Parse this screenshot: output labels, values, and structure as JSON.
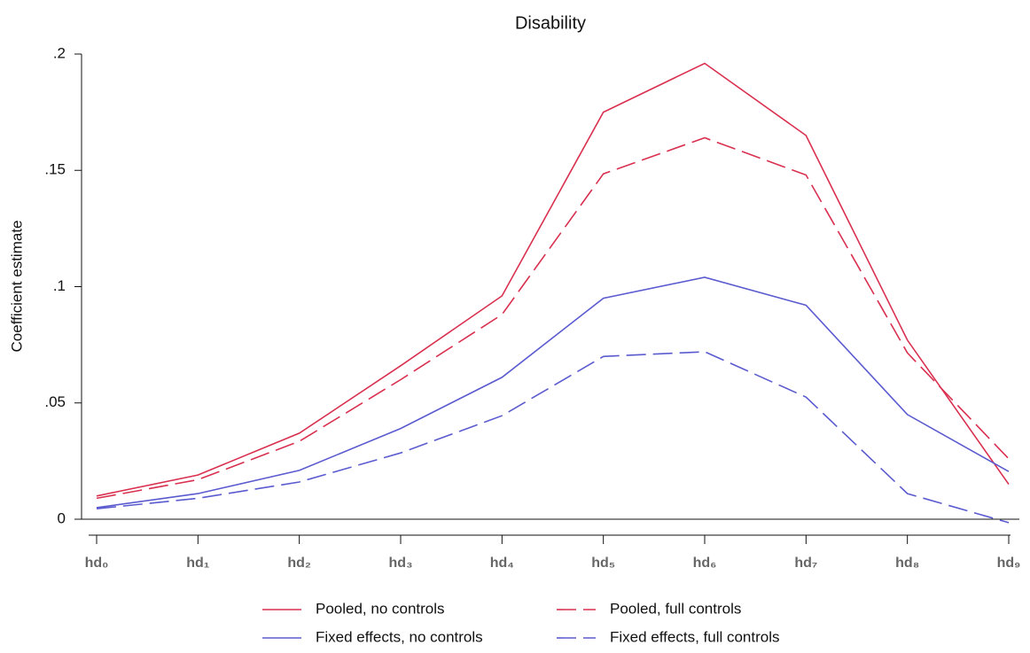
{
  "chart_data": {
    "type": "line",
    "title": "Disability",
    "y_label": "Coefficient estimate",
    "categories": [
      "hd₀",
      "hd₁",
      "hd₂",
      "hd₃",
      "hd₄",
      "hd₅",
      "hd₆",
      "hd₇",
      "hd₈",
      "hd₉"
    ],
    "series": [
      {
        "name": "Pooled, no controls",
        "color": "#d9304f",
        "dash": "solid",
        "values": [
          0.01,
          0.019,
          0.037,
          0.066,
          0.096,
          0.175,
          0.196,
          0.165,
          0.077,
          0.015
        ]
      },
      {
        "name": "Pooled, full controls",
        "color": "#d9304f",
        "dash": "dashed",
        "values": [
          0.009,
          0.017,
          0.0335,
          0.06,
          0.088,
          0.1485,
          0.164,
          0.148,
          0.0715,
          0.026
        ]
      },
      {
        "name": "Fixed effects, no controls",
        "color": "#5b5bd0",
        "dash": "solid",
        "values": [
          0.005,
          0.011,
          0.021,
          0.039,
          0.061,
          0.095,
          0.104,
          0.092,
          0.045,
          0.0205
        ]
      },
      {
        "name": "Fixed effects, full controls",
        "color": "#5b5bd0",
        "dash": "dashed",
        "values": [
          0.0045,
          0.009,
          0.016,
          0.0285,
          0.0445,
          0.07,
          0.072,
          0.0525,
          0.011,
          -0.0015
        ]
      }
    ],
    "ylim": [
      0,
      0.2
    ],
    "yticks": [
      0,
      {
        "value": 0.05,
        "label": ".05"
      },
      {
        "value": 0.1,
        "label": ".1"
      },
      {
        "value": 0.15,
        "label": ".15"
      },
      {
        "value": 0.2,
        "label": ".2"
      }
    ],
    "legend": "bottom"
  }
}
